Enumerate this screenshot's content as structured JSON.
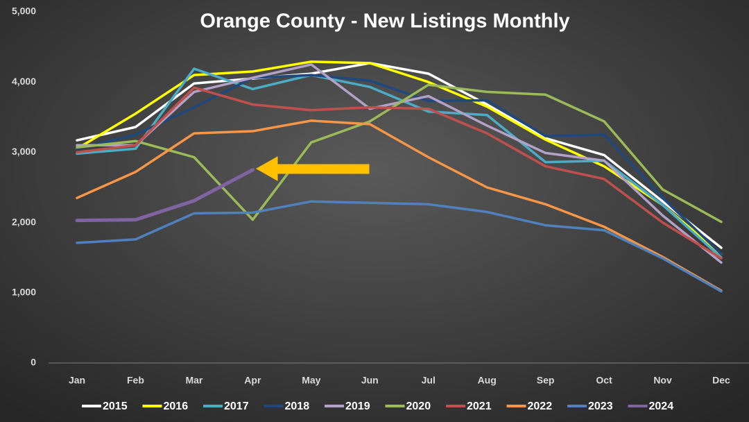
{
  "chart_data": {
    "type": "line",
    "title": "Orange County - New Listings Monthly",
    "categories": [
      "Jan",
      "Feb",
      "Mar",
      "Apr",
      "May",
      "Jun",
      "Jul",
      "Aug",
      "Sep",
      "Oct",
      "Nov",
      "Dec"
    ],
    "ylim": [
      0,
      5000
    ],
    "yticks": [
      0,
      {
        "value": 1000,
        "label": "1,000"
      },
      {
        "value": 2000,
        "label": "2,000"
      },
      {
        "value": 3000,
        "label": "3,000"
      },
      {
        "value": 4000,
        "label": "4,000"
      },
      {
        "value": 5000,
        "label": "5,000"
      }
    ],
    "grid": false,
    "legend": "bottom",
    "series": [
      {
        "name": "2015",
        "color": "#ffffff",
        "values": [
          3170,
          3360,
          3980,
          4050,
          4120,
          4270,
          4120,
          3680,
          3200,
          2960,
          2300,
          1640
        ]
      },
      {
        "name": "2016",
        "color": "#ffff00",
        "values": [
          3050,
          3550,
          4100,
          4150,
          4290,
          4270,
          4000,
          3650,
          3180,
          2800,
          2250,
          1550
        ]
      },
      {
        "name": "2017",
        "color": "#4bacc6",
        "values": [
          2980,
          3050,
          4190,
          3900,
          4100,
          3930,
          3580,
          3530,
          2860,
          2880,
          2250,
          1500
        ]
      },
      {
        "name": "2018",
        "color": "#1f497d",
        "values": [
          3050,
          3250,
          3640,
          4060,
          4100,
          4020,
          3730,
          3740,
          3230,
          3250,
          2350,
          1550
        ]
      },
      {
        "name": "2019",
        "color": "#b3a2c7",
        "values": [
          3100,
          3100,
          3860,
          4060,
          4250,
          3620,
          3800,
          3380,
          2990,
          2880,
          2100,
          1430
        ]
      },
      {
        "name": "2020",
        "color": "#9bbb59",
        "values": [
          3070,
          3160,
          2930,
          2040,
          3140,
          3440,
          3960,
          3860,
          3820,
          3440,
          2470,
          2010
        ]
      },
      {
        "name": "2021",
        "color": "#c0504d",
        "values": [
          3000,
          3100,
          3920,
          3680,
          3600,
          3640,
          3620,
          3270,
          2800,
          2620,
          2000,
          1490
        ]
      },
      {
        "name": "2022",
        "color": "#f79646",
        "values": [
          2350,
          2720,
          3270,
          3300,
          3450,
          3400,
          2930,
          2500,
          2260,
          1940,
          1510,
          1030
        ]
      },
      {
        "name": "2023",
        "color": "#4f81bd",
        "values": [
          1710,
          1760,
          2130,
          2140,
          2300,
          2280,
          2260,
          2150,
          1960,
          1890,
          1490,
          1020
        ]
      },
      {
        "name": "2024",
        "color": "#8064a2",
        "values": [
          2030,
          2040,
          2310,
          2750,
          null,
          null,
          null,
          null,
          null,
          null,
          null,
          null
        ]
      }
    ]
  }
}
